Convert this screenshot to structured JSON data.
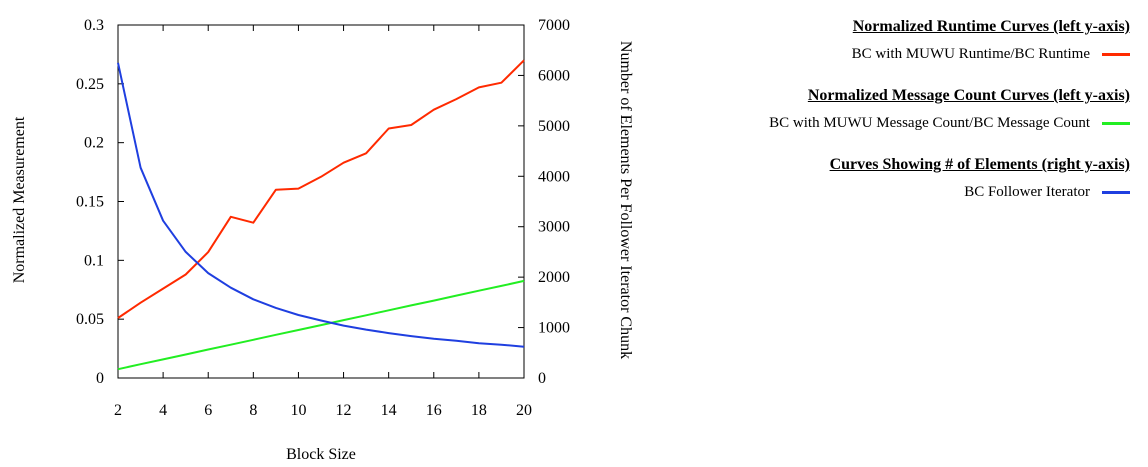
{
  "chart_data": {
    "type": "line",
    "xlabel": "Block Size",
    "ylabel": "Normalized Measurement",
    "y2label": "Number of Elements Per Follower Iterator Chunk",
    "xlim": [
      2,
      20
    ],
    "ylim": [
      0,
      0.3
    ],
    "y2lim": [
      0,
      7000
    ],
    "x_ticks": [
      "2",
      "4",
      "6",
      "8",
      "10",
      "12",
      "14",
      "16",
      "18",
      "20"
    ],
    "y_ticks": [
      "0",
      "0.05",
      "0.1",
      "0.15",
      "0.2",
      "0.25",
      "0.3"
    ],
    "y2_ticks": [
      "0",
      "1000",
      "2000",
      "3000",
      "4000",
      "5000",
      "6000",
      "7000"
    ],
    "grid": false,
    "legend_position": "right",
    "x": [
      2,
      3,
      4,
      5,
      6,
      7,
      8,
      9,
      10,
      11,
      12,
      13,
      14,
      15,
      16,
      17,
      18,
      19,
      20
    ],
    "series": [
      {
        "name": "BC with MUWU Runtime/BC Runtime",
        "axis": "left",
        "color": "#ff2a00",
        "values": [
          0.051,
          0.064,
          0.076,
          0.088,
          0.107,
          0.137,
          0.132,
          0.16,
          0.161,
          0.171,
          0.183,
          0.191,
          0.212,
          0.215,
          0.228,
          0.237,
          0.247,
          0.251,
          0.27
        ]
      },
      {
        "name": "BC with MUWU Message Count/BC Message Count",
        "axis": "left",
        "color": "#22ee22",
        "values": [
          0.0075,
          0.0117,
          0.0158,
          0.02,
          0.0242,
          0.0283,
          0.0325,
          0.0367,
          0.0408,
          0.045,
          0.0492,
          0.0533,
          0.0575,
          0.0617,
          0.0658,
          0.07,
          0.0742,
          0.0783,
          0.0825
        ]
      },
      {
        "name": "BC Follower Iterator",
        "axis": "right",
        "color": "#1f3fe0",
        "values": [
          6250,
          4170,
          3120,
          2500,
          2080,
          1790,
          1560,
          1390,
          1250,
          1140,
          1040,
          960,
          890,
          830,
          780,
          740,
          690,
          660,
          620
        ]
      }
    ]
  },
  "legend": {
    "groups": [
      {
        "title": "Normalized Runtime Curves (left y-axis)",
        "entries": [
          {
            "label": "BC with MUWU Runtime/BC Runtime",
            "color": "#ff2a00"
          }
        ]
      },
      {
        "title": "Normalized Message Count Curves (left y-axis)",
        "entries": [
          {
            "label": "BC with MUWU Message Count/BC Message Count",
            "color": "#22ee22"
          }
        ]
      },
      {
        "title": "Curves Showing # of Elements (right y-axis)",
        "entries": [
          {
            "label": "BC Follower Iterator",
            "color": "#1f3fe0"
          }
        ]
      }
    ]
  }
}
